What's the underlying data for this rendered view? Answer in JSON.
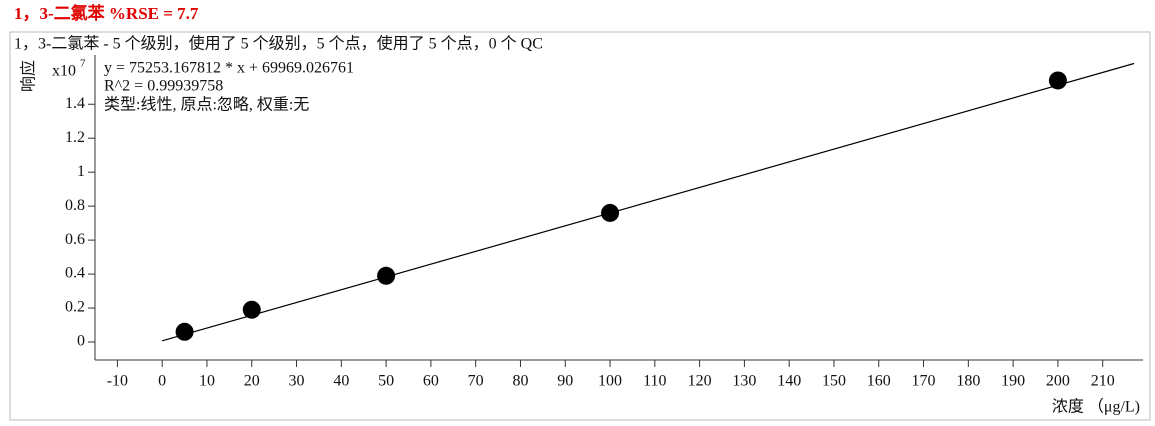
{
  "chart_data": {
    "type": "scatter",
    "title": "1，3-二氯苯   %RSE = 7.7",
    "subtitle": "1，3-二氯苯 - 5 个级别，使用了 5 个级别，5 个点，使用了 5 个点，0 个 QC",
    "annotations": [
      "y = 75253.167812 * x  + 69969.026761",
      "R^2 = 0.99939758",
      "类型:线性, 原点:忽略, 权重:无"
    ],
    "y_label": "响应",
    "y_scale": {
      "base": "x10",
      "exponent": "7"
    },
    "x_label": "浓度 （μg/L)",
    "x": [
      5,
      20,
      50,
      100,
      200
    ],
    "values": [
      0.06,
      0.19,
      0.39,
      0.76,
      1.54
    ],
    "color": "#000000",
    "fit_line": {
      "x": [
        0,
        217
      ],
      "values": [
        0.007,
        1.64
      ],
      "color": "#000000"
    },
    "xlim": [
      -15,
      219
    ],
    "xticks": [
      -10,
      0,
      10,
      20,
      30,
      40,
      50,
      60,
      70,
      80,
      90,
      100,
      110,
      120,
      130,
      140,
      150,
      160,
      170,
      180,
      190,
      200,
      210
    ],
    "ylim": [
      -0.106,
      1.69
    ],
    "yticks": [
      0,
      0.2,
      0.4,
      0.6,
      0.8,
      1,
      1.2,
      1.4
    ],
    "grid": false
  }
}
